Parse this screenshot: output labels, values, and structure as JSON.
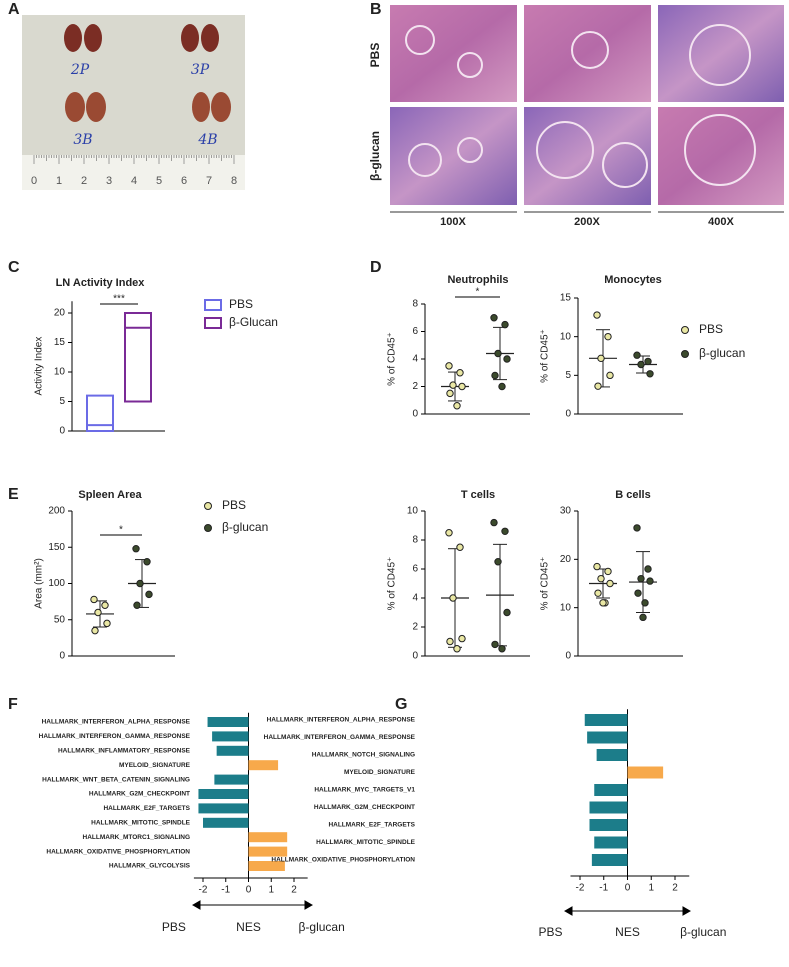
{
  "figure_letters": [
    "A",
    "B",
    "C",
    "D",
    "E",
    "F",
    "G"
  ],
  "photo": {
    "labels": [
      "2P",
      "3P",
      "3B",
      "4B"
    ],
    "ruler": [
      "0",
      "1",
      "2",
      "3",
      "4",
      "5",
      "6",
      "7",
      "8"
    ]
  },
  "histology": {
    "rows": [
      "PBS",
      "β-glucan"
    ],
    "columns": [
      "100X",
      "200X",
      "400X"
    ]
  },
  "chart_data": [
    {
      "type": "floating_bar",
      "title": "LN Activity Index",
      "ylabel": "Activity Index",
      "ylim": [
        0,
        22
      ],
      "yticks": [
        0,
        5,
        10,
        15,
        20
      ],
      "annotation": "***",
      "legend": true,
      "series": [
        {
          "name": "PBS",
          "color": "#6b6be6",
          "low": 0,
          "high": 6,
          "mid": 1
        },
        {
          "name": "β-Glucan",
          "color": "#7a2a96",
          "low": 5,
          "high": 20,
          "mid": 17.5
        }
      ]
    },
    {
      "type": "dot_plot",
      "title": "Neutrophils",
      "ylabel": "% of CD45⁺",
      "ylim": [
        0,
        8
      ],
      "yticks": [
        0,
        2,
        4,
        6,
        8
      ],
      "annotation": "*",
      "legend": true,
      "series": [
        {
          "name": "PBS",
          "color": "#e9e7a4",
          "values": [
            3.5,
            3.0,
            2.1,
            2.0,
            1.5,
            0.6
          ],
          "mean": 2.0,
          "sd": 1.05
        },
        {
          "name": "β-glucan",
          "color": "#3b4a2c",
          "values": [
            7.0,
            6.5,
            4.4,
            4.0,
            2.8,
            2.0
          ],
          "mean": 4.4,
          "sd": 1.9
        }
      ]
    },
    {
      "type": "dot_plot",
      "title": "Monocytes",
      "ylabel": "% of CD45⁺",
      "ylim": [
        0,
        15
      ],
      "yticks": [
        0,
        5,
        10,
        15
      ],
      "legend": false,
      "series": [
        {
          "color": "#e9e7a4",
          "values": [
            12.8,
            10.0,
            7.2,
            5.0,
            3.6
          ],
          "mean": 7.2,
          "sd": 3.7
        },
        {
          "color": "#3b4a2c",
          "values": [
            7.6,
            6.8,
            6.4,
            5.2
          ],
          "mean": 6.4,
          "sd": 1.1
        }
      ]
    },
    {
      "type": "dot_plot",
      "title": "Spleen Area",
      "ylabel": "Area (mm²)",
      "ylim": [
        0,
        200
      ],
      "yticks": [
        0,
        50,
        100,
        150,
        200
      ],
      "annotation": "*",
      "legend": true,
      "series": [
        {
          "name": "PBS",
          "color": "#e9e7a4",
          "values": [
            78,
            70,
            60,
            45,
            35
          ],
          "mean": 58,
          "sd": 18
        },
        {
          "name": "β-glucan",
          "color": "#3b4a2c",
          "values": [
            148,
            130,
            100,
            85,
            70
          ],
          "mean": 100,
          "sd": 33
        }
      ]
    },
    {
      "type": "dot_plot",
      "title": "T cells",
      "ylabel": "% of CD45⁺",
      "ylim": [
        0,
        10
      ],
      "yticks": [
        0,
        2,
        4,
        6,
        8,
        10
      ],
      "legend": false,
      "series": [
        {
          "color": "#e9e7a4",
          "values": [
            8.5,
            7.5,
            4.0,
            1.2,
            1.0,
            0.5
          ],
          "mean": 4.0,
          "sd": 3.4
        },
        {
          "color": "#3b4a2c",
          "values": [
            9.2,
            8.6,
            6.5,
            3.0,
            0.8,
            0.5
          ],
          "mean": 4.2,
          "sd": 3.5
        }
      ]
    },
    {
      "type": "dot_plot",
      "title": "B cells",
      "ylabel": "% of CD45⁺",
      "ylim": [
        0,
        30
      ],
      "yticks": [
        0,
        10,
        20,
        30
      ],
      "legend": false,
      "series": [
        {
          "color": "#e9e7a4",
          "values": [
            18.5,
            17.5,
            16,
            15,
            13,
            11,
            11
          ],
          "mean": 15,
          "sd": 3
        },
        {
          "color": "#3b4a2c",
          "values": [
            26.5,
            18,
            16,
            15.5,
            13,
            11,
            8
          ],
          "mean": 15.3,
          "sd": 6.3
        }
      ]
    },
    {
      "type": "hbar",
      "xlabel": "NES",
      "left_label": "PBS",
      "right_label": "β-glucan",
      "xlim": [
        -2.4,
        2.6
      ],
      "xticks": [
        -2,
        -1,
        0,
        1,
        2
      ],
      "negative_color": "#1c7d8a",
      "positive_color": "#f7a94b",
      "categories": [
        "HALLMARK_INTERFERON_ALPHA_RESPONSE",
        "HALLMARK_INTERFERON_GAMMA_RESPONSE",
        "HALLMARK_INFLAMMATORY_RESPONSE",
        "MYELOID_SIGNATURE",
        "HALLMARK_WNT_BETA_CATENIN_SIGNALING",
        "HALLMARK_G2M_CHECKPOINT",
        "HALLMARK_E2F_TARGETS",
        "HALLMARK_MITOTIC_SPINDLE",
        "HALLMARK_MTORC1_SIGNALING",
        "HALLMARK_OXIDATIVE_PHOSPHORYLATION",
        "HALLMARK_GLYCOLYSIS"
      ],
      "values": [
        -1.8,
        -1.6,
        -1.4,
        1.3,
        -1.5,
        -2.2,
        -2.2,
        -2.0,
        1.7,
        1.7,
        1.6
      ]
    },
    {
      "type": "hbar",
      "xlabel": "NES",
      "left_label": "PBS",
      "right_label": "β-glucan",
      "xlim": [
        -2.4,
        2.6
      ],
      "xticks": [
        -2,
        -1,
        0,
        1,
        2
      ],
      "negative_color": "#1c7d8a",
      "positive_color": "#f7a94b",
      "categories": [
        "HALLMARK_INTERFERON_ALPHA_RESPONSE",
        "HALLMARK_INTERFERON_GAMMA_RESPONSE",
        "HALLMARK_NOTCH_SIGNALING",
        "MYELOID_SIGNATURE",
        "HALLMARK_MYC_TARGETS_V1",
        "HALLMARK_G2M_CHECKPOINT",
        "HALLMARK_E2F_TARGETS",
        "HALLMARK_MITOTIC_SPINDLE",
        "HALLMARK_OXIDATIVE_PHOSPHORYLATION"
      ],
      "values": [
        -1.8,
        -1.7,
        -1.3,
        1.5,
        -1.4,
        -1.6,
        -1.6,
        -1.4,
        -1.5
      ]
    }
  ]
}
